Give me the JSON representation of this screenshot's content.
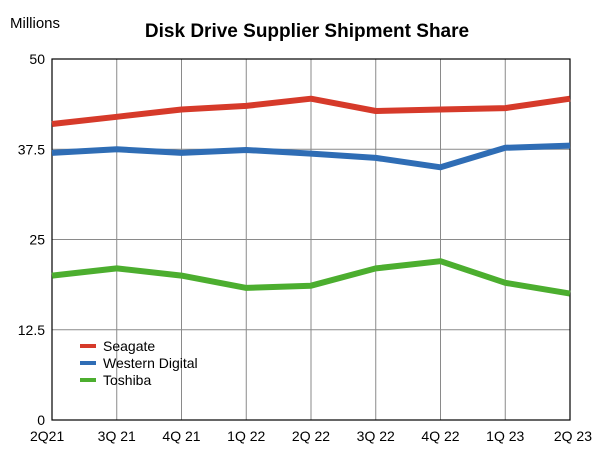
{
  "chart_data": {
    "type": "line",
    "title": "Disk Drive Supplier Shipment Share",
    "unit_label": "Millions",
    "categories": [
      "2Q21",
      "3Q 21",
      "4Q 21",
      "1Q 22",
      "2Q 22",
      "3Q 22",
      "4Q 22",
      "1Q 23",
      "2Q 23"
    ],
    "ylim": [
      0,
      50
    ],
    "yticks": [
      0,
      12.5,
      25,
      37.5,
      50
    ],
    "ytick_labels": [
      "0",
      "12.5",
      "25",
      "37.5",
      "50"
    ],
    "grid": true,
    "legend_position": "bottom-left",
    "series": [
      {
        "name": "Seagate",
        "color": "#d63a2a",
        "values": [
          41.0,
          42.0,
          43.0,
          43.5,
          44.5,
          42.8,
          43.0,
          43.2,
          44.5
        ]
      },
      {
        "name": "Western Digital",
        "color": "#2f6db5",
        "values": [
          37.0,
          37.5,
          37.0,
          37.4,
          36.9,
          36.3,
          35.0,
          37.7,
          38.0
        ]
      },
      {
        "name": "Toshiba",
        "color": "#4cae2f",
        "values": [
          20.0,
          21.0,
          20.0,
          18.3,
          18.6,
          21.0,
          22.0,
          19.0,
          17.5
        ]
      }
    ]
  }
}
